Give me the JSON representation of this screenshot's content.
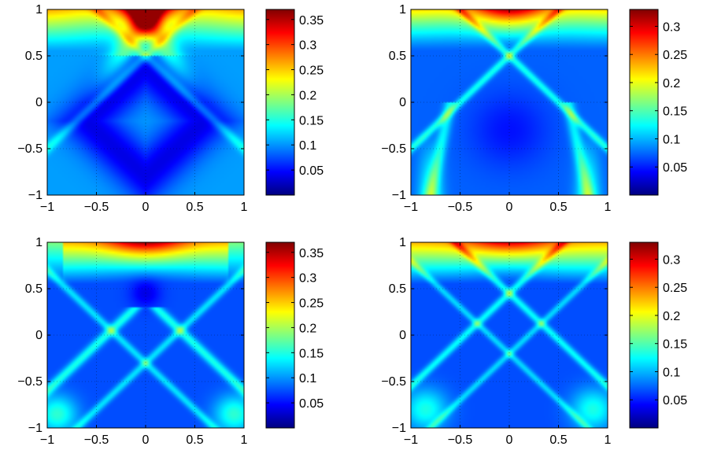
{
  "chart_data": [
    {
      "type": "heatmap",
      "title": "",
      "xlabel": "",
      "ylabel": "",
      "xlim": [
        -1,
        1
      ],
      "ylim": [
        -1,
        1
      ],
      "x_ticks": [
        "−1",
        "−0.5",
        "0",
        "0.5",
        "1"
      ],
      "y_ticks": [
        "1",
        "0.5",
        "0",
        "−0.5",
        "−1"
      ],
      "colorscale": "jet",
      "color_range": [
        0,
        0.37
      ],
      "colorbar_ticks": [
        "0.35",
        "0.3",
        "0.25",
        "0.2",
        "0.15",
        "0.1",
        "0.05"
      ],
      "colorbar_tick_values": [
        0.35,
        0.3,
        0.25,
        0.2,
        0.15,
        0.1,
        0.05
      ],
      "grid": true
    },
    {
      "type": "heatmap",
      "title": "",
      "xlabel": "",
      "ylabel": "",
      "xlim": [
        -1,
        1
      ],
      "ylim": [
        -1,
        1
      ],
      "x_ticks": [
        "−1",
        "−0.5",
        "0",
        "0.5",
        "1"
      ],
      "y_ticks": [
        "1",
        "0.5",
        "0",
        "−0.5",
        "−1"
      ],
      "colorscale": "jet",
      "color_range": [
        0,
        0.33
      ],
      "colorbar_ticks": [
        "0.3",
        "0.25",
        "0.2",
        "0.15",
        "0.1",
        "0.05"
      ],
      "colorbar_tick_values": [
        0.3,
        0.25,
        0.2,
        0.15,
        0.1,
        0.05
      ],
      "grid": true
    },
    {
      "type": "heatmap",
      "title": "",
      "xlabel": "",
      "ylabel": "",
      "xlim": [
        -1,
        1
      ],
      "ylim": [
        -1,
        1
      ],
      "x_ticks": [
        "−1",
        "−0.5",
        "0",
        "0.5",
        "1"
      ],
      "y_ticks": [
        "1",
        "0.5",
        "0",
        "−0.5",
        "−1"
      ],
      "colorscale": "jet",
      "color_range": [
        0,
        0.37
      ],
      "colorbar_ticks": [
        "0.35",
        "0.3",
        "0.25",
        "0.2",
        "0.15",
        "0.1",
        "0.05"
      ],
      "colorbar_tick_values": [
        0.35,
        0.3,
        0.25,
        0.2,
        0.15,
        0.1,
        0.05
      ],
      "grid": true
    },
    {
      "type": "heatmap",
      "title": "",
      "xlabel": "",
      "ylabel": "",
      "xlim": [
        -1,
        1
      ],
      "ylim": [
        -1,
        1
      ],
      "x_ticks": [
        "−1",
        "−0.5",
        "0",
        "0.5",
        "1"
      ],
      "y_ticks": [
        "1",
        "0.5",
        "0",
        "−0.5",
        "−1"
      ],
      "colorscale": "jet",
      "color_range": [
        0,
        0.33
      ],
      "colorbar_ticks": [
        "0.3",
        "0.25",
        "0.2",
        "0.15",
        "0.1",
        "0.05"
      ],
      "colorbar_tick_values": [
        0.3,
        0.25,
        0.2,
        0.15,
        0.1,
        0.05
      ],
      "grid": true
    }
  ]
}
